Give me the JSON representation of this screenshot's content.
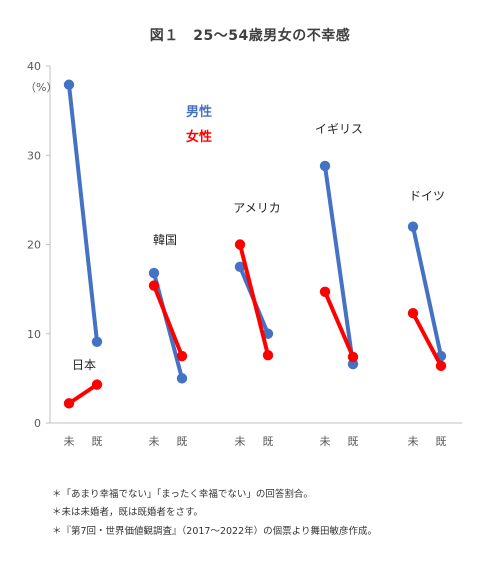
{
  "chart_data": {
    "type": "line",
    "title": "図１　25～54歳男女の不幸感",
    "ylabel": "（%）",
    "ylim": [
      0,
      40
    ],
    "yticks": [
      0,
      10,
      20,
      30,
      40
    ],
    "grid": false,
    "legend_placement": "top-left",
    "x_categories": [
      "未",
      "既"
    ],
    "groups": [
      {
        "name": "日本",
        "series": [
          {
            "name": "男性",
            "values": [
              37.9,
              9.1
            ]
          },
          {
            "name": "女性",
            "values": [
              2.2,
              4.3
            ]
          }
        ]
      },
      {
        "name": "韓国",
        "series": [
          {
            "name": "男性",
            "values": [
              16.8,
              5.0
            ]
          },
          {
            "name": "女性",
            "values": [
              15.4,
              7.5
            ]
          }
        ]
      },
      {
        "name": "アメリカ",
        "series": [
          {
            "name": "男性",
            "values": [
              17.5,
              10.0
            ]
          },
          {
            "name": "女性",
            "values": [
              20.0,
              7.6
            ]
          }
        ]
      },
      {
        "name": "イギリス",
        "series": [
          {
            "name": "男性",
            "values": [
              28.8,
              6.6
            ]
          },
          {
            "name": "女性",
            "values": [
              14.7,
              7.4
            ]
          }
        ]
      },
      {
        "name": "ドイツ",
        "series": [
          {
            "name": "男性",
            "values": [
              22.0,
              7.5
            ]
          },
          {
            "name": "女性",
            "values": [
              12.3,
              6.4
            ]
          }
        ]
      }
    ],
    "legend": [
      {
        "name": "男性",
        "color": "#4472C4"
      },
      {
        "name": "女性",
        "color": "#FF0000"
      }
    ]
  },
  "notes": [
    "＊「あまり幸福でない」「まったく幸福でない」の回答割合。",
    "＊未は未婚者，既は既婚者をさす。",
    "＊『第7回・世界価値観調査』（2017～2022年）の個票より舞田敏彦作成。"
  ]
}
